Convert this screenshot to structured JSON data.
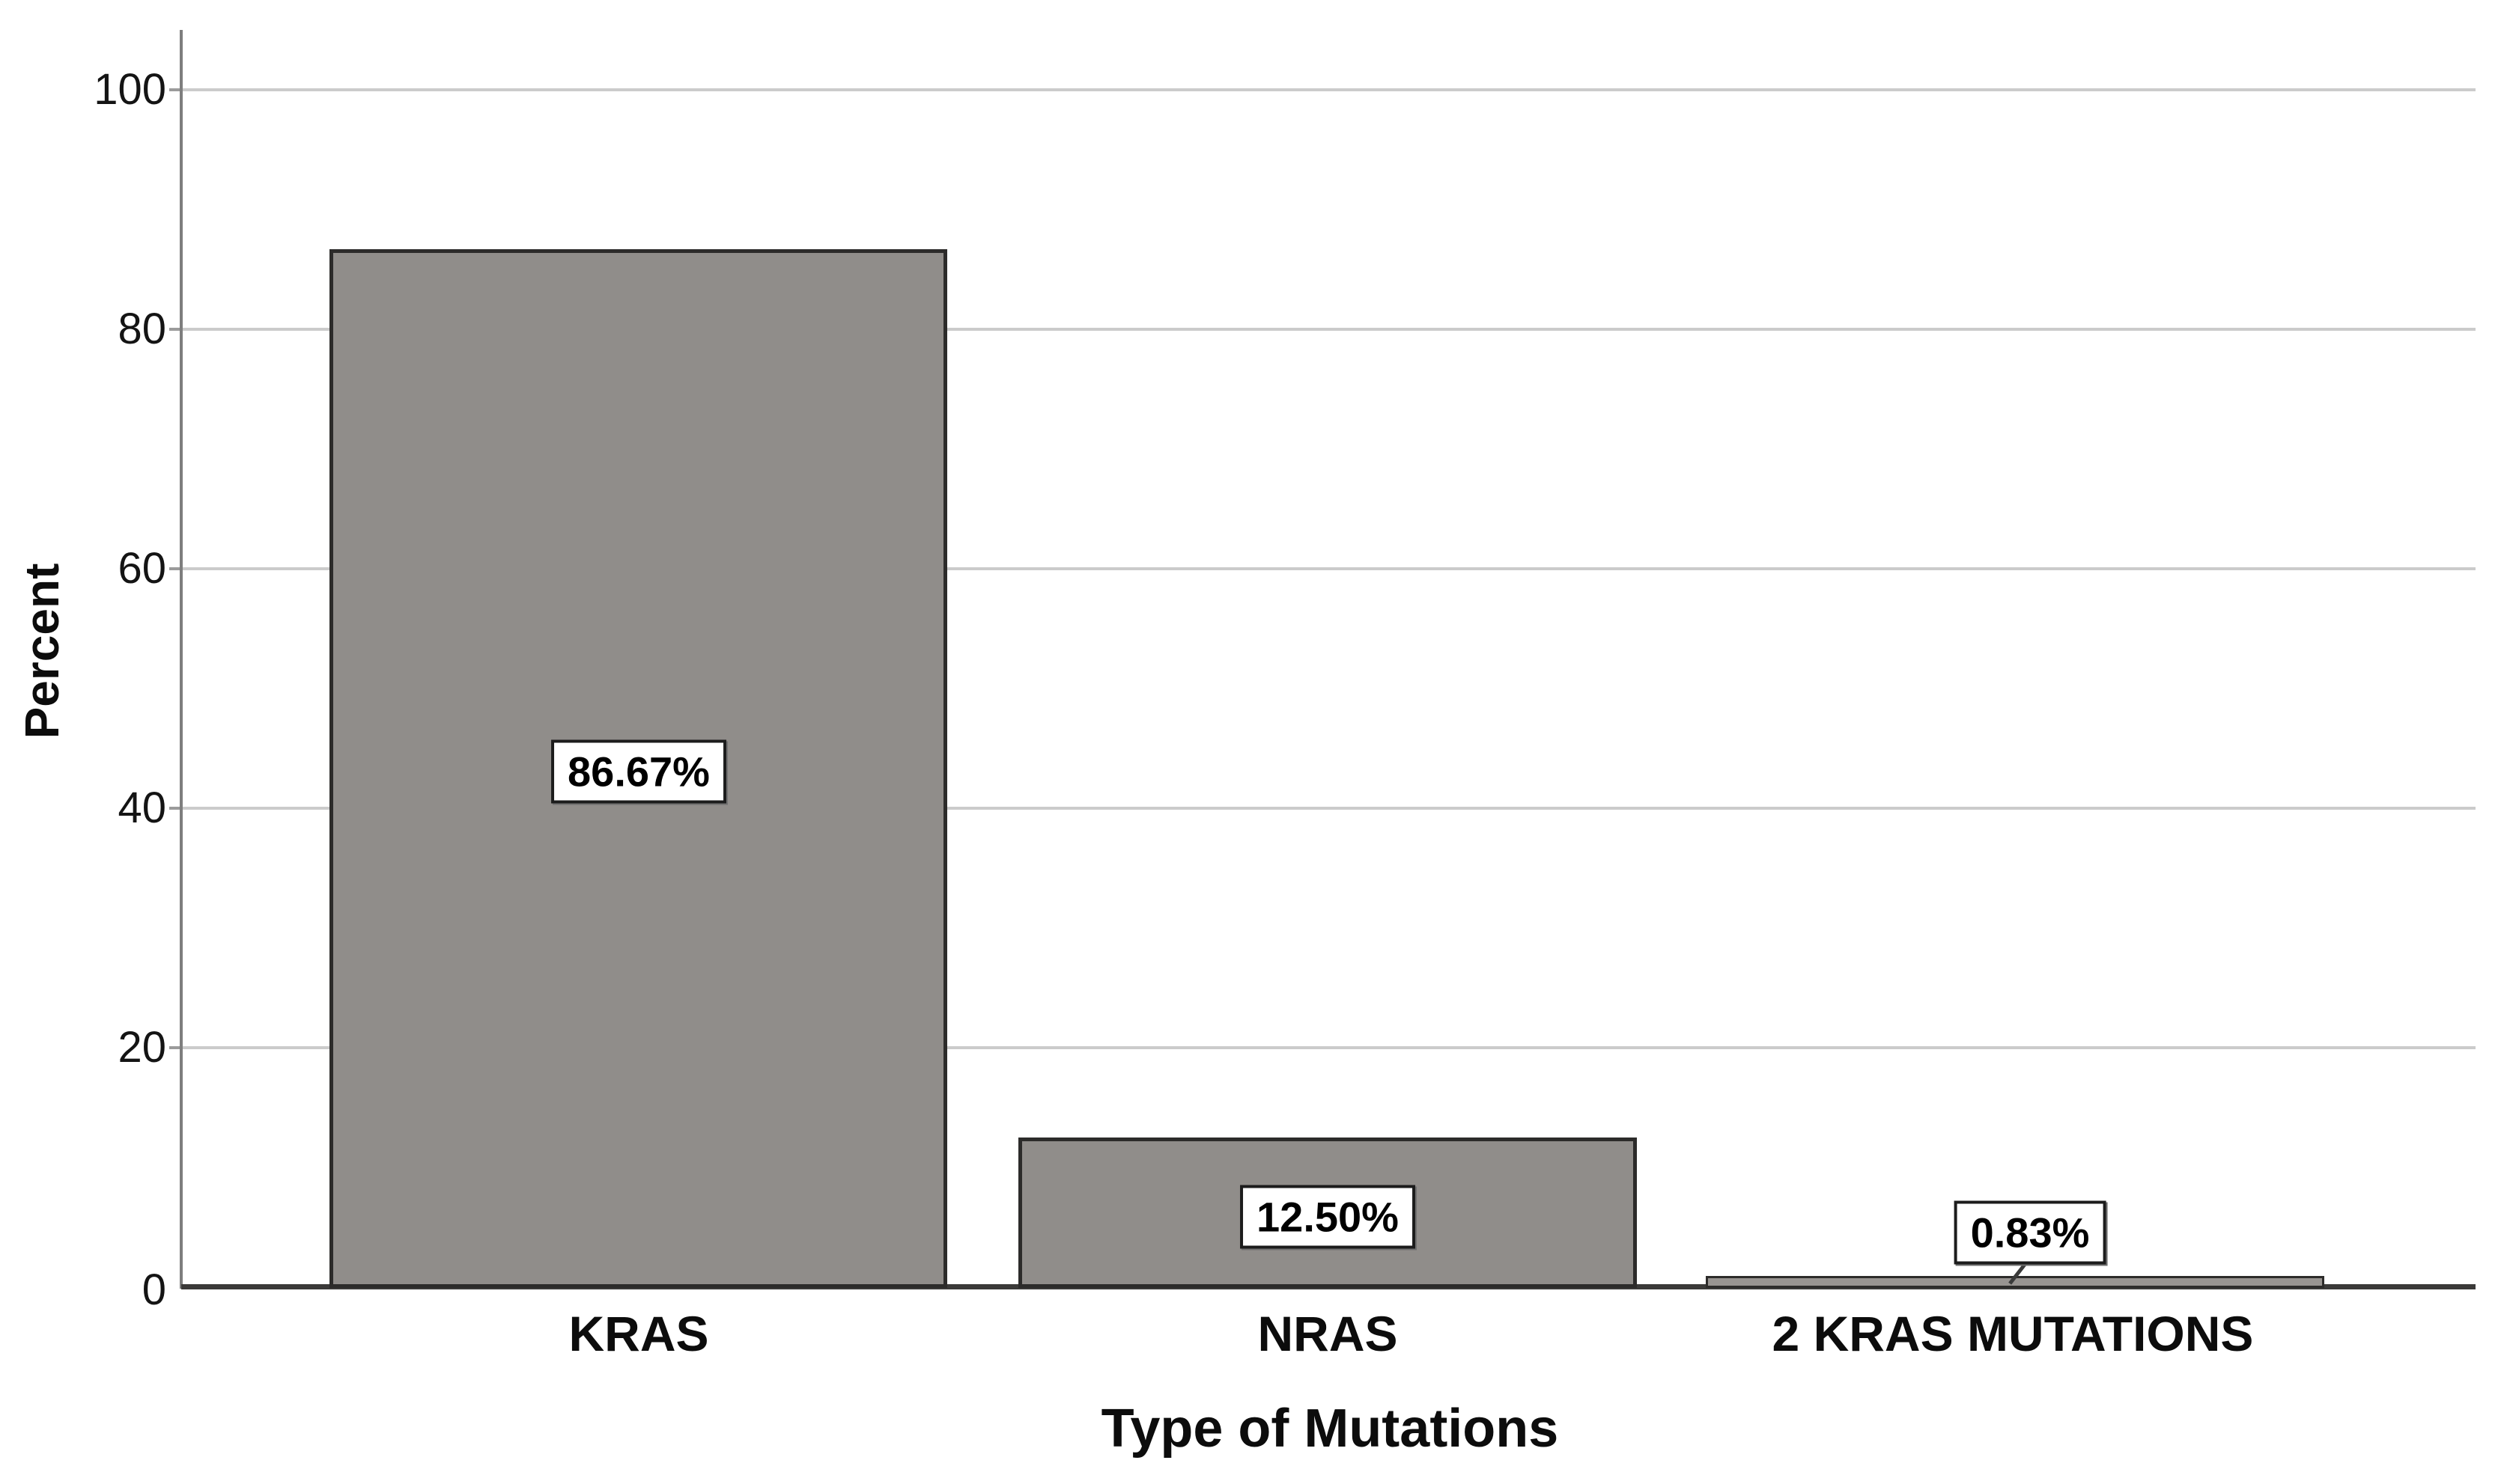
{
  "chart_data": {
    "type": "bar",
    "title": "",
    "xlabel": "Type of Mutations",
    "ylabel": "Percent",
    "categories": [
      "KRAS",
      "NRAS",
      "2 KRAS MUTATIONS"
    ],
    "values": [
      86.67,
      12.5,
      0.83
    ],
    "value_labels": [
      "86.67%",
      "12.50%",
      "0.83%"
    ],
    "yticks": [
      0,
      20,
      40,
      60,
      80,
      100
    ],
    "ytick_labels_top_to_bottom": [
      "100",
      "80",
      "60",
      "40",
      "20",
      "0"
    ],
    "ylim": [
      0,
      105
    ],
    "grid": "horizontal gridlines at 20,40,60,80,100",
    "legend": "none",
    "bar_color": "#908D8A",
    "bar_border_color": "#2C2B2A",
    "gridline_color": "#CBCBCB",
    "y_axis_color": "#7E7E7E",
    "x_axis_color": "#3B3A39",
    "label_box_bg": "#FFFFFF",
    "label_box_border": "#1C1C1C",
    "background": "#FFFFFF"
  }
}
